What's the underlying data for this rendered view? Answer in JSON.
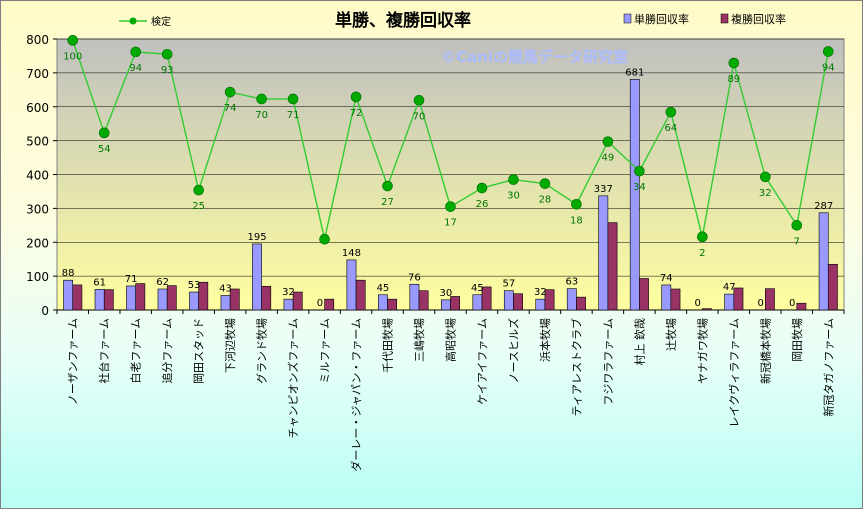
{
  "title": "単勝、複勝回収率",
  "watermark": "©Caniの競馬データ研究室",
  "colors": {
    "win_bar": "#9999ff",
    "place_bar": "#993366",
    "line": "#33cc33",
    "marker": "#00aa00",
    "line_label": "#007700",
    "plot_bg_top": "#c0c0c0",
    "plot_bg_bottom": "#ffffa0"
  },
  "chart_data": {
    "type": "bar",
    "categories": [
      "ノーザンファーム",
      "社台ファーム",
      "白老ファーム",
      "追分ファーム",
      "岡田スタッド",
      "下河辺牧場",
      "グランド牧場",
      "チャンピオンズファーム",
      "ミルファーム",
      "ダーレー・ジャパン・ファーム",
      "千代田牧場",
      "三嶋牧場",
      "高昭牧場",
      "ケイアイファーム",
      "ノースヒルズ",
      "浜本牧場",
      "ティアレストクラブ",
      "フジワラファーム",
      "村上 欽哉",
      "辻牧場",
      "ヤナガワ牧場",
      "レイクヴィラファーム",
      "新冠橋本牧場",
      "岡田牧場",
      "新冠タガノファーム"
    ],
    "series": [
      {
        "name": "単勝回収率",
        "type": "bar",
        "values": [
          88,
          61,
          71,
          62,
          53,
          43,
          195,
          32,
          0,
          148,
          45,
          76,
          30,
          45,
          57,
          32,
          63,
          337,
          681,
          74,
          0,
          47,
          0,
          0,
          287
        ]
      },
      {
        "name": "複勝回収率",
        "type": "bar",
        "values": [
          74,
          60,
          78,
          72,
          82,
          62,
          70,
          53,
          32,
          88,
          32,
          57,
          40,
          68,
          48,
          60,
          38,
          258,
          93,
          62,
          4,
          65,
          63,
          20,
          135
        ]
      },
      {
        "name": "検定",
        "type": "line",
        "values": [
          796,
          523,
          762,
          755,
          354,
          643,
          623,
          623,
          209,
          629,
          366,
          619,
          305,
          360,
          385,
          373,
          312,
          497,
          410,
          584,
          216,
          729,
          393,
          250,
          763
        ],
        "labels": [
          100,
          54,
          94,
          93,
          25,
          74,
          70,
          71,
          null,
          72,
          27,
          70,
          17,
          26,
          30,
          28,
          18,
          49,
          34,
          64,
          2,
          89,
          32,
          7,
          94
        ]
      }
    ],
    "ylim": [
      0,
      800
    ],
    "yticks": [
      0,
      100,
      200,
      300,
      400,
      500,
      600,
      700,
      800
    ],
    "grid": true,
    "legend": "top"
  }
}
